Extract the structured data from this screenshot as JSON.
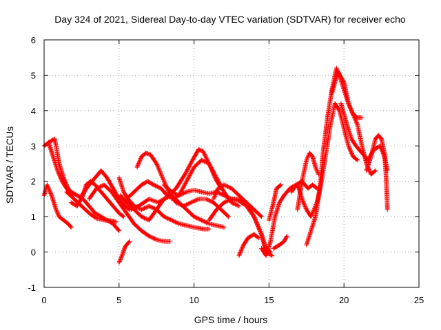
{
  "chart_data": {
    "type": "scatter",
    "title": "Day 324 of 2021, Sidereal Day-to-day VTEC variation (SDTVAR) for receiver echo",
    "xlabel": "GPS time / hours",
    "ylabel": "SDTVAR / TECUs",
    "xlim": [
      0,
      25
    ],
    "ylim": [
      -1,
      6
    ],
    "xticks": [
      "0",
      "5",
      "10",
      "15",
      "20",
      "25"
    ],
    "yticks": [
      "-1",
      "0",
      "1",
      "2",
      "3",
      "4",
      "5",
      "6"
    ],
    "grid": true,
    "marker": "+",
    "color": "#ff0000",
    "series": [
      {
        "name": "s1",
        "x": [
          0.0,
          0.3,
          0.6,
          0.9,
          1.2,
          1.5,
          1.8
        ],
        "y": [
          3.0,
          3.1,
          2.7,
          2.3,
          2.0,
          1.8,
          1.6
        ]
      },
      {
        "name": "s2",
        "x": [
          0.0,
          0.2,
          0.5,
          0.8,
          1.0,
          1.3,
          1.6,
          1.8
        ],
        "y": [
          1.6,
          1.9,
          1.6,
          1.2,
          1.0,
          0.9,
          0.8,
          0.7
        ]
      },
      {
        "name": "s3",
        "x": [
          0.3,
          0.7,
          0.8,
          1.0,
          1.3,
          1.6,
          1.8,
          2.2,
          2.6,
          3.0,
          3.4,
          3.8,
          4.2,
          4.6,
          5.0
        ],
        "y": [
          3.1,
          3.2,
          3.0,
          2.5,
          2.1,
          1.8,
          1.7,
          1.6,
          1.5,
          1.3,
          1.1,
          1.0,
          0.9,
          0.8,
          0.6
        ]
      },
      {
        "name": "s4",
        "x": [
          1.5,
          2.0,
          2.5,
          3.0,
          3.5,
          4.0,
          4.5,
          4.8
        ],
        "y": [
          1.7,
          1.5,
          1.3,
          1.1,
          0.95,
          0.9,
          0.88,
          0.85
        ]
      },
      {
        "name": "s5",
        "x": [
          1.8,
          2.2,
          2.6,
          2.8,
          3.1,
          3.4,
          3.8,
          4.2,
          4.6,
          5.0,
          5.3
        ],
        "y": [
          1.4,
          1.3,
          1.6,
          1.9,
          2.0,
          1.9,
          1.7,
          1.5,
          1.3,
          1.1,
          1.0
        ]
      },
      {
        "name": "s6",
        "x": [
          2.5,
          3.0,
          3.4,
          3.8,
          4.2,
          4.6,
          5.0,
          5.4,
          5.7
        ],
        "y": [
          1.6,
          1.9,
          2.1,
          2.3,
          2.1,
          1.8,
          1.5,
          1.3,
          1.2
        ]
      },
      {
        "name": "s7",
        "x": [
          3.0,
          3.5,
          4.0,
          4.5,
          5.0,
          5.5,
          6.0,
          6.5,
          7.0,
          7.5,
          8.0,
          8.4
        ],
        "y": [
          1.5,
          1.8,
          1.9,
          1.7,
          1.4,
          1.1,
          0.8,
          0.6,
          0.45,
          0.35,
          0.3,
          0.3
        ]
      },
      {
        "name": "s8",
        "x": [
          5.0,
          5.2,
          5.4,
          5.7
        ],
        "y": [
          -0.3,
          -0.1,
          0.15,
          0.3
        ]
      },
      {
        "name": "s9",
        "x": [
          5.0,
          5.3,
          5.6,
          6.0,
          6.5,
          7.0,
          7.5,
          8.0,
          8.5,
          9.0,
          9.5,
          10.0,
          10.6,
          11.0
        ],
        "y": [
          2.1,
          1.7,
          1.5,
          1.3,
          1.2,
          1.3,
          1.2,
          1.0,
          0.9,
          0.8,
          0.75,
          0.7,
          0.65,
          0.65
        ]
      },
      {
        "name": "s10",
        "x": [
          5.1,
          5.5,
          6.0,
          6.5,
          7.0,
          7.5,
          8.0,
          8.5,
          9.0,
          9.5,
          10.0,
          10.5,
          11.0,
          11.5,
          12.0
        ],
        "y": [
          1.6,
          1.4,
          1.2,
          1.0,
          0.9,
          1.2,
          1.5,
          1.6,
          1.4,
          1.2,
          1.0,
          0.9,
          0.8,
          0.75,
          0.7
        ]
      },
      {
        "name": "s11",
        "x": [
          5.5,
          6.0,
          6.5,
          6.9,
          7.3,
          7.8,
          8.2,
          8.7
        ],
        "y": [
          1.5,
          1.7,
          1.9,
          2.0,
          1.9,
          1.8,
          1.6,
          1.5
        ]
      },
      {
        "name": "s12",
        "x": [
          6.2,
          6.5,
          6.8,
          7.1,
          7.5,
          7.9,
          8.3,
          8.8,
          9.3,
          9.8,
          10.3,
          10.8,
          11.3,
          11.8,
          12.3
        ],
        "y": [
          2.4,
          2.7,
          2.8,
          2.75,
          2.5,
          2.1,
          1.7,
          1.4,
          1.3,
          1.4,
          1.5,
          1.5,
          1.4,
          1.2,
          1.0
        ]
      },
      {
        "name": "s13",
        "x": [
          5.8,
          6.3,
          7.0,
          7.6,
          8.2,
          8.8,
          9.4,
          9.9,
          10.3,
          10.6,
          11.0,
          11.4,
          11.8
        ],
        "y": [
          1.2,
          1.3,
          1.5,
          1.4,
          1.55,
          1.8,
          2.2,
          2.6,
          2.9,
          2.85,
          2.5,
          2.1,
          1.8
        ]
      },
      {
        "name": "s14",
        "x": [
          8.0,
          8.5,
          9.0,
          9.5,
          10.0,
          10.5,
          11.0,
          11.5,
          12.0,
          12.5,
          13.0
        ],
        "y": [
          1.9,
          1.7,
          1.6,
          2.0,
          2.4,
          2.6,
          2.5,
          2.1,
          1.7,
          1.4,
          1.3
        ]
      },
      {
        "name": "s15",
        "x": [
          8.5,
          9.0,
          9.5,
          10.0,
          10.5,
          11.0,
          11.5,
          12.0,
          12.5,
          13.0,
          13.5,
          14.0,
          14.5,
          14.8,
          15.2
        ],
        "y": [
          1.5,
          1.6,
          1.7,
          1.75,
          1.7,
          1.65,
          1.7,
          1.6,
          1.5,
          1.45,
          1.3,
          1.0,
          0.5,
          0.0,
          -0.1
        ]
      },
      {
        "name": "s16",
        "x": [
          11.0,
          11.5,
          12.0,
          12.5,
          13.0,
          13.5,
          14.0,
          14.5,
          14.8,
          15.1
        ],
        "y": [
          0.9,
          1.2,
          1.4,
          1.5,
          1.5,
          1.4,
          1.0,
          0.5,
          0.1,
          0.0
        ]
      },
      {
        "name": "s17",
        "x": [
          11.3,
          11.6,
          12.0,
          12.5,
          13.0,
          13.5,
          14.0,
          14.5
        ],
        "y": [
          1.5,
          1.8,
          1.9,
          1.8,
          1.6,
          1.4,
          1.2,
          1.0
        ]
      },
      {
        "name": "s18",
        "x": [
          13.0,
          13.3,
          13.6,
          14.0,
          14.3
        ],
        "y": [
          -0.1,
          0.2,
          0.4,
          0.5,
          0.4
        ]
      },
      {
        "name": "s19",
        "x": [
          14.5,
          14.8,
          15.1,
          15.4,
          15.7,
          16.0,
          16.4,
          16.8,
          17.2,
          17.6,
          17.9,
          18.2
        ],
        "y": [
          0.1,
          -0.1,
          0.3,
          1.0,
          1.4,
          1.6,
          1.8,
          1.9,
          2.0,
          1.8,
          1.9,
          1.8
        ]
      },
      {
        "name": "s20",
        "x": [
          15.3,
          15.7,
          16.0,
          16.2
        ],
        "y": [
          0.1,
          0.2,
          0.3,
          0.45
        ]
      },
      {
        "name": "s21",
        "x": [
          15.0,
          15.3,
          15.5,
          15.8
        ],
        "y": [
          0.9,
          1.4,
          1.8,
          1.9
        ]
      },
      {
        "name": "s22",
        "x": [
          16.5,
          16.8,
          17.0,
          17.2,
          17.5,
          17.8,
          18.2,
          18.5,
          18.8,
          19.1,
          19.4,
          19.7,
          20.0,
          20.3,
          20.6,
          20.9
        ],
        "y": [
          1.7,
          1.9,
          1.8,
          1.5,
          1.2,
          1.0,
          1.4,
          2.0,
          2.8,
          3.6,
          4.2,
          4.0,
          3.5,
          3.0,
          2.7,
          2.6
        ]
      },
      {
        "name": "s23",
        "x": [
          16.9,
          17.2,
          17.5,
          17.7,
          17.9,
          18.1,
          18.3
        ],
        "y": [
          1.2,
          2.0,
          2.6,
          2.8,
          2.7,
          2.4,
          2.2
        ]
      },
      {
        "name": "s24",
        "x": [
          17.5,
          17.8,
          18.1,
          18.4,
          18.6,
          18.9,
          19.2,
          19.5,
          19.7,
          20.0,
          20.3,
          20.6,
          20.9,
          21.2,
          21.5,
          21.8,
          22.1
        ],
        "y": [
          0.2,
          0.6,
          1.0,
          1.8,
          2.8,
          3.8,
          4.6,
          5.2,
          5.0,
          4.6,
          4.2,
          3.9,
          3.6,
          3.0,
          2.5,
          2.2,
          2.3
        ]
      },
      {
        "name": "s25",
        "x": [
          19.2,
          19.6,
          20.0,
          20.3,
          20.6,
          20.9,
          21.2
        ],
        "y": [
          4.5,
          5.1,
          4.8,
          4.2,
          3.9,
          3.8,
          3.8
        ]
      },
      {
        "name": "s26",
        "x": [
          19.8,
          20.2,
          20.5,
          20.8,
          21.2,
          21.6,
          22.0,
          22.4,
          22.7,
          22.9
        ],
        "y": [
          4.2,
          3.6,
          3.2,
          3.0,
          2.8,
          2.6,
          2.9,
          3.0,
          2.7,
          2.3
        ]
      },
      {
        "name": "s27",
        "x": [
          21.5,
          21.8,
          22.1,
          22.3,
          22.5,
          22.7,
          22.8,
          22.9
        ],
        "y": [
          2.3,
          2.7,
          3.2,
          3.3,
          3.2,
          2.8,
          2.2,
          1.2
        ]
      }
    ]
  }
}
